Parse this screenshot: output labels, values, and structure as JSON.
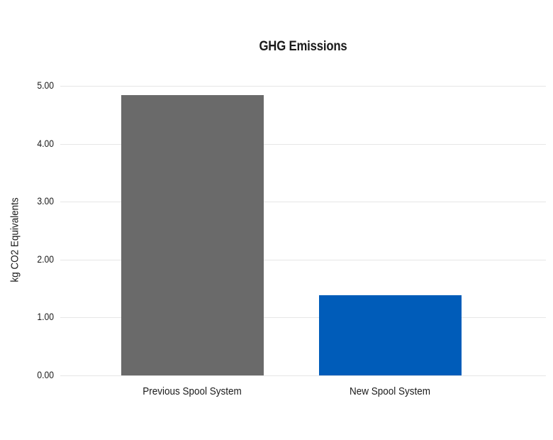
{
  "chart_data": {
    "type": "bar",
    "title": "GHG Emissions",
    "xlabel": "",
    "ylabel": "kg CO2 Equivalents",
    "categories": [
      "Previous Spool System",
      "New Spool System"
    ],
    "values": [
      4.84,
      1.38
    ],
    "bar_colors": [
      "#6A6A6A",
      "#005CB9"
    ],
    "ylim": [
      0,
      5
    ],
    "yticks": [
      0,
      1,
      2,
      3,
      4,
      5
    ],
    "ytick_labels": [
      "0.00",
      "1.00",
      "2.00",
      "3.00",
      "4.00",
      "5.00"
    ],
    "grid": "horizontal",
    "legend": false
  },
  "colors": {
    "grid": "#E6E6E6",
    "text": "#1A1A1A",
    "background": "#FFFFFF"
  }
}
